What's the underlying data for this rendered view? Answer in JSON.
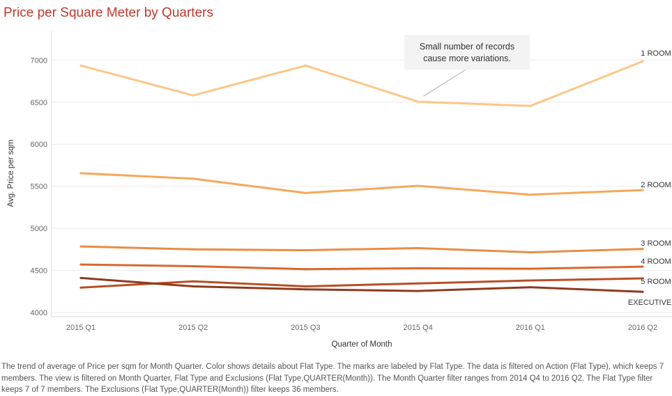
{
  "title": "Price per Square Meter by Quarters",
  "caption": "The trend of average of Price per sqm for Month Quarter.  Color shows details about Flat Type.  The marks are labeled by Flat Type. The data is filtered on Action (Flat Type), which keeps 7 members. The view is filtered on Month Quarter, Flat Type and Exclusions (Flat Type,QUARTER(Month)). The Month Quarter filter ranges from 2014 Q4 to 2016 Q2. The Flat Type filter keeps 7 of 7 members. The Exclusions (Flat Type,QUARTER(Month)) filter keeps 36 members.",
  "chart_data": {
    "type": "line",
    "xlabel": "Quarter of Month",
    "ylabel": "Avg. Price per sqm",
    "categories": [
      "2015 Q1",
      "2015 Q2",
      "2015 Q3",
      "2015 Q4",
      "2016 Q1",
      "2016 Q2"
    ],
    "ylim": [
      3950,
      7350
    ],
    "yticks": [
      4000,
      4500,
      5000,
      5500,
      6000,
      6500,
      7000
    ],
    "grid": true,
    "legend": "none",
    "series": [
      {
        "name": "1 ROOM",
        "color": "#fdc686",
        "values": [
          6935,
          6580,
          6935,
          6505,
          6455,
          6985
        ]
      },
      {
        "name": "2 ROOM",
        "color": "#f5a85a",
        "values": [
          5655,
          5590,
          5420,
          5505,
          5400,
          5455
        ]
      },
      {
        "name": "3 ROOM",
        "color": "#ec8b40",
        "values": [
          4785,
          4750,
          4740,
          4765,
          4715,
          4755
        ]
      },
      {
        "name": "4 ROOM",
        "color": "#d8692e",
        "values": [
          4570,
          4550,
          4515,
          4525,
          4520,
          4545
        ]
      },
      {
        "name": "5 ROOM",
        "color": "#b84e25",
        "values": [
          4295,
          4370,
          4310,
          4345,
          4380,
          4405
        ]
      },
      {
        "name": "EXECUTIVE",
        "color": "#8e3a1f",
        "values": [
          4410,
          4310,
          4275,
          4255,
          4300,
          4245
        ]
      }
    ],
    "annotation": {
      "lines": [
        "Small number of records",
        "cause more variations."
      ],
      "target_series": "1 ROOM",
      "target_category": "2015 Q4"
    }
  }
}
